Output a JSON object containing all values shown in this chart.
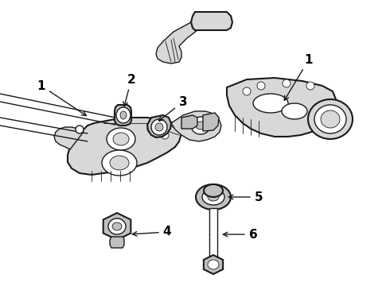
{
  "background_color": "#ffffff",
  "line_color": "#1a1a1a",
  "light_gray": "#d8d8d8",
  "mid_gray": "#c0c0c0",
  "dark_gray": "#888888",
  "fig_width": 4.9,
  "fig_height": 3.6,
  "dpi": 100,
  "label_fontsize": 11,
  "label_color": "#000000"
}
